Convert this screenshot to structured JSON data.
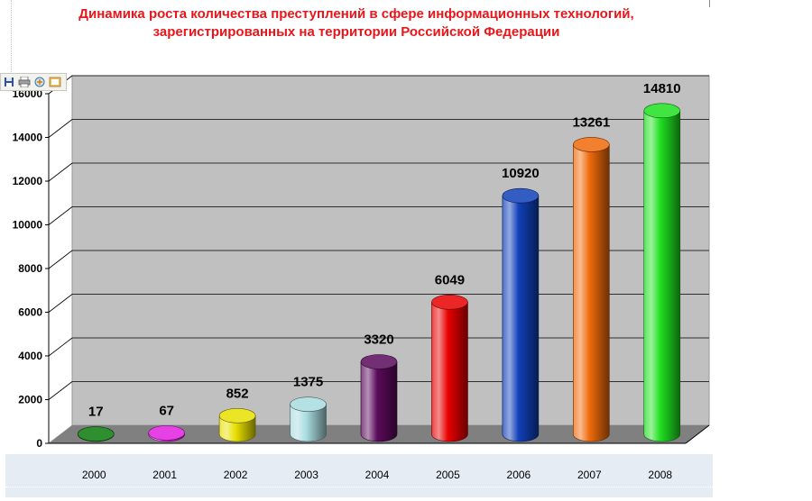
{
  "title_lines": [
    "Динамика роста количества преступлений в сфере информационных технологий,",
    "зарегистрированных на территории Российской Федерации"
  ],
  "toolbar": {
    "icons": [
      "save-icon",
      "print-icon",
      "copy-icon",
      "export-icon"
    ]
  },
  "chart_data": {
    "type": "bar",
    "title": "Динамика роста количества преступлений в сфере информационных технологий, зарегистрированных на территории Российской Федерации",
    "categories": [
      "2000",
      "2001",
      "2002",
      "2003",
      "2004",
      "2005",
      "2006",
      "2007",
      "2008"
    ],
    "values": [
      17,
      67,
      852,
      1375,
      3320,
      6049,
      10920,
      13261,
      14810
    ],
    "value_labels": [
      "17",
      "67",
      "852",
      "1375",
      "3320",
      "6049",
      "10920",
      "13261",
      "14810"
    ],
    "colors": [
      "#0a7a0a",
      "#e020e0",
      "#e8e000",
      "#a8dce0",
      "#5a0a5a",
      "#e80000",
      "#1040b8",
      "#f06a0a",
      "#20e020"
    ],
    "yticks": [
      0,
      2000,
      4000,
      6000,
      8000,
      10000,
      12000,
      14000,
      16000
    ],
    "ytick_labels": [
      "0",
      "2000",
      "4000",
      "6000",
      "8000",
      "10000",
      "12000",
      "14000",
      "16000"
    ],
    "ylim": [
      0,
      16000
    ],
    "grid": true,
    "shape": "3d-cylinder",
    "wall_color": "#c0c0c0",
    "floor_color": "#808080"
  }
}
